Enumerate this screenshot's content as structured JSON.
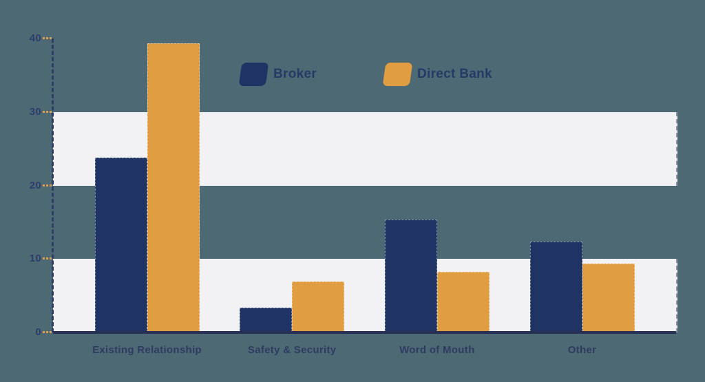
{
  "page": {
    "background_color": "#4d6a74"
  },
  "chart_data": {
    "type": "bar",
    "title": "",
    "categories": [
      "Existing Relationship",
      "Safety & Security",
      "Word of Mouth",
      "Other"
    ],
    "series": [
      {
        "name": "Broker",
        "color": "#1f3364",
        "values": [
          23.8,
          3.4,
          15.4,
          12.4
        ]
      },
      {
        "name": "Direct Bank",
        "color": "#e19d42",
        "values": [
          39.3,
          6.9,
          8.2,
          9.4
        ]
      }
    ],
    "xlabel": "",
    "ylabel": "",
    "ylim": [
      0,
      40
    ],
    "yticks": [
      40,
      30,
      20,
      10,
      0
    ],
    "grid": "horizontal-bands",
    "grid_bands": [
      [
        20,
        30
      ],
      [
        0,
        10
      ]
    ],
    "legend_position": "top-center",
    "colors": {
      "band": "#f2f1f4",
      "axis": "#2e3c68",
      "tick_dash": "#dd9f4e",
      "tick_label": "#2e3d6a",
      "category_label": "#2f3a61",
      "legend_label": "#263a68",
      "baseline": "#293055"
    }
  }
}
